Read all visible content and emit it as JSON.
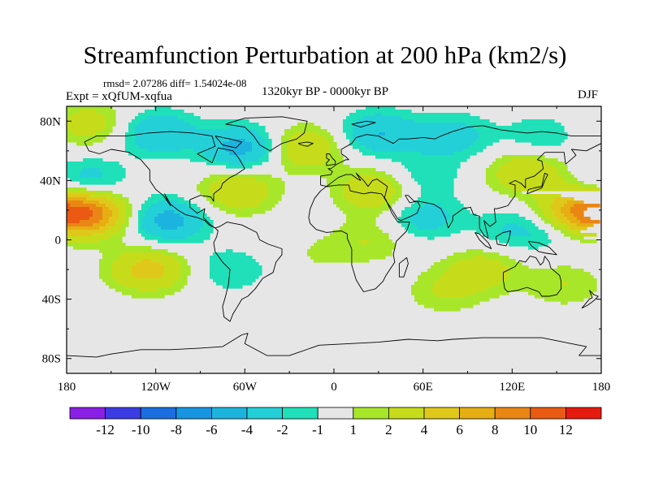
{
  "chart_data": {
    "type": "heatmap",
    "title": "Streamfunction Perturbation at 200 hPa (km2/s)",
    "left_string": "Expt = xQfUM-xqfua",
    "center_string": "1320kyr BP - 0000kyr BP",
    "right_string": "DJF",
    "stats_string": "rmsd= 2.07286 diff= 1.54024e-08",
    "projection": "cylindrical equidistant",
    "xlim": [
      -180,
      180
    ],
    "ylim": [
      -90,
      90
    ],
    "x_ticks": [
      {
        "value": -180,
        "label": "180"
      },
      {
        "value": -120,
        "label": "120W"
      },
      {
        "value": -60,
        "label": "60W"
      },
      {
        "value": 0,
        "label": "0"
      },
      {
        "value": 60,
        "label": "60E"
      },
      {
        "value": 120,
        "label": "120E"
      },
      {
        "value": 180,
        "label": "180"
      }
    ],
    "y_ticks": [
      {
        "value": 80,
        "label": "80N"
      },
      {
        "value": 40,
        "label": "40N"
      },
      {
        "value": 0,
        "label": "0"
      },
      {
        "value": -40,
        "label": "40S"
      },
      {
        "value": -80,
        "label": "80S"
      }
    ],
    "colorbar": {
      "colors": [
        "#8a1fe6",
        "#3c3ce4",
        "#1a6ee0",
        "#1795e2",
        "#1cb4de",
        "#24d0d8",
        "#1fe0b8",
        "#e6e6e6",
        "#a8e62a",
        "#c6dc1a",
        "#e0c81a",
        "#e6ae12",
        "#ea8614",
        "#ea5a12",
        "#e61a0e"
      ],
      "labels": [
        "-12",
        "-10",
        "-8",
        "-6",
        "-4",
        "-2",
        "-1",
        "1",
        "2",
        "4",
        "6",
        "8",
        "10",
        "12"
      ]
    },
    "anomaly_centers": [
      {
        "lon": -165,
        "lat": 18,
        "value": 9
      },
      {
        "lon": 165,
        "lat": 18,
        "value": 8
      },
      {
        "lon": -165,
        "lat": 78,
        "value": 3
      },
      {
        "lon": -118,
        "lat": 72,
        "value": -4
      },
      {
        "lon": -62,
        "lat": 62,
        "value": -5
      },
      {
        "lon": -20,
        "lat": 62,
        "value": 4
      },
      {
        "lon": 30,
        "lat": 72,
        "value": -4
      },
      {
        "lon": 80,
        "lat": 70,
        "value": -3
      },
      {
        "lon": 140,
        "lat": 70,
        "value": -2
      },
      {
        "lon": 130,
        "lat": 45,
        "value": 4
      },
      {
        "lon": 60,
        "lat": 43,
        "value": -2
      },
      {
        "lon": 28,
        "lat": 33,
        "value": 4
      },
      {
        "lon": -65,
        "lat": 33,
        "value": 4
      },
      {
        "lon": -165,
        "lat": 40,
        "value": -3
      },
      {
        "lon": -112,
        "lat": 13,
        "value": -5
      },
      {
        "lon": 60,
        "lat": 15,
        "value": -3
      },
      {
        "lon": 120,
        "lat": 7,
        "value": -2
      },
      {
        "lon": 150,
        "lat": 7,
        "value": -2
      },
      {
        "lon": -125,
        "lat": -20,
        "value": 5
      },
      {
        "lon": -70,
        "lat": -20,
        "value": -2
      },
      {
        "lon": 100,
        "lat": -20,
        "value": 3
      },
      {
        "lon": 155,
        "lat": -30,
        "value": 2
      },
      {
        "lon": 25,
        "lat": 0,
        "value": 2
      },
      {
        "lon": -10,
        "lat": -10,
        "value": 1
      },
      {
        "lon": 75,
        "lat": -35,
        "value": 2
      }
    ]
  }
}
